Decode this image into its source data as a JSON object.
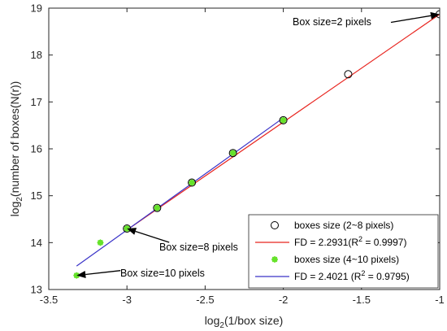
{
  "chart_data": {
    "type": "scatter",
    "xlabel": "log",
    "xlabel_sub": "2",
    "xlabel_rest": "(1/box size)",
    "ylabel": "log",
    "ylabel_sub": "2",
    "ylabel_rest": "(number of boxes(N(r))",
    "xlim": [
      -3.5,
      -1
    ],
    "ylim": [
      13,
      19
    ],
    "xticks": [
      -3.5,
      -3,
      -2.5,
      -2,
      -1.5,
      -1
    ],
    "xtick_labels": [
      "-3.5",
      "-3",
      "-2.5",
      "-2",
      "-1.5",
      "-1"
    ],
    "yticks": [
      13,
      14,
      15,
      16,
      17,
      18,
      19
    ],
    "ytick_labels": [
      "13",
      "14",
      "15",
      "16",
      "17",
      "18",
      "19"
    ],
    "grid": false,
    "legend_position": "bottom-right",
    "series": [
      {
        "name": "boxes size (2~8  pixels)",
        "kind": "marker-circle",
        "color": "#000000",
        "x": [
          -3.0,
          -2.807,
          -2.585,
          -2.322,
          -2.0,
          -1.585,
          -1.0
        ],
        "y": [
          14.3,
          14.74,
          15.28,
          15.91,
          16.61,
          17.59,
          18.87
        ]
      },
      {
        "name": "FD = 2.2931(R",
        "name_sup": "2",
        "name_rest": " = 0.9997)",
        "kind": "line",
        "color": "#e8251f",
        "x": [
          -3.0,
          -1.0
        ],
        "y": [
          14.27,
          18.87
        ]
      },
      {
        "name": "boxes size (4~10 pixels)",
        "kind": "marker-star",
        "color": "#66e22b",
        "x": [
          -3.322,
          -3.17,
          -3.0,
          -2.807,
          -2.585,
          -2.322,
          -2.0
        ],
        "y": [
          13.3,
          14.0,
          14.3,
          14.74,
          15.28,
          15.91,
          16.61
        ]
      },
      {
        "name": "FD = 2.4021 (R",
        "name_sup": "2",
        "name_rest": " = 0.9795)",
        "kind": "line",
        "color": "#3a33c8",
        "x": [
          -3.322,
          -2.0
        ],
        "y": [
          13.5,
          16.66
        ]
      }
    ],
    "annotations": [
      {
        "text": "Box size=2 pixels",
        "x": -1.0,
        "y": 18.87
      },
      {
        "text": "Box size=8 pixels",
        "x": -3.0,
        "y": 14.3
      },
      {
        "text": "Box size=10 pixels",
        "x": -3.322,
        "y": 13.3
      }
    ]
  }
}
